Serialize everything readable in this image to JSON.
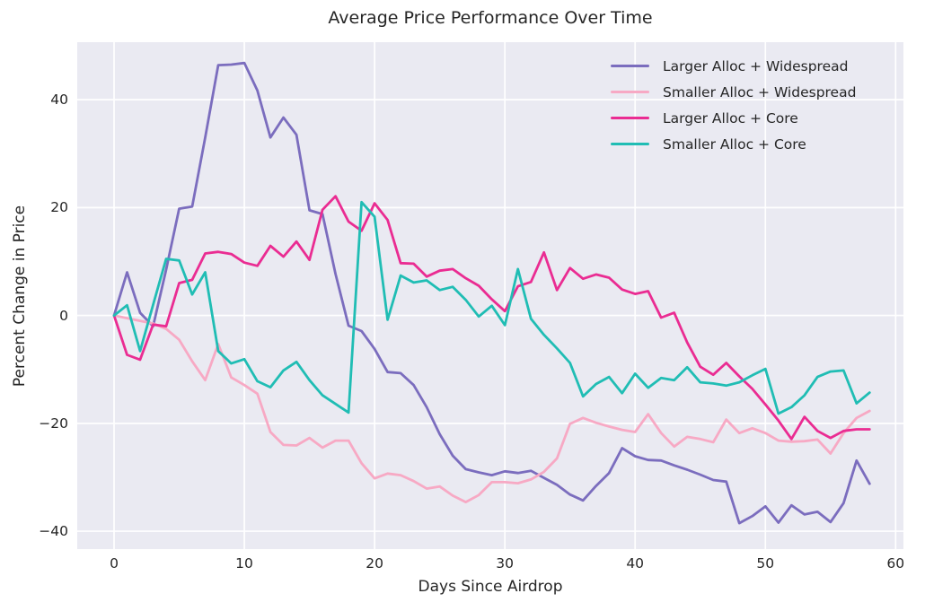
{
  "figure": {
    "title": "Average Price Performance Over Time"
  },
  "axes": {
    "xlabel": "Days Since Airdrop",
    "ylabel": "Percent Change in Price",
    "x_ticks": [
      {
        "value": 0,
        "label": "0"
      },
      {
        "value": 10,
        "label": "10"
      },
      {
        "value": 20,
        "label": "20"
      },
      {
        "value": 30,
        "label": "30"
      },
      {
        "value": 40,
        "label": "40"
      },
      {
        "value": 50,
        "label": "50"
      },
      {
        "value": 60,
        "label": "60"
      }
    ],
    "y_ticks": [
      {
        "value": -40,
        "label": "−40"
      },
      {
        "value": -20,
        "label": "−20"
      },
      {
        "value": 0,
        "label": "0"
      },
      {
        "value": 20,
        "label": "20"
      },
      {
        "value": 40,
        "label": "40"
      }
    ]
  },
  "colors": {
    "plot_background": "#eaeaf2",
    "grid": "#ffffff",
    "text": "#262626",
    "purple": "#7b6dbe",
    "pink": "#f7a9c4",
    "magenta": "#ea2c92",
    "teal": "#20bdb4"
  },
  "chart_data": {
    "type": "line",
    "title": "Average Price Performance Over Time",
    "xlabel": "Days Since Airdrop",
    "ylabel": "Percent Change in Price",
    "xlim": [
      -2.8,
      60.6
    ],
    "ylim": [
      -43.3,
      50.6
    ],
    "grid": true,
    "legend_position": "upper right",
    "x": [
      0,
      1,
      2,
      3,
      4,
      5,
      6,
      7,
      8,
      9,
      10,
      11,
      12,
      13,
      14,
      15,
      16,
      17,
      18,
      19,
      20,
      21,
      22,
      23,
      24,
      25,
      26,
      27,
      28,
      29,
      30,
      31,
      32,
      33,
      34,
      35,
      36,
      37,
      38,
      39,
      40,
      41,
      42,
      43,
      44,
      45,
      46,
      47,
      48,
      49,
      50,
      51,
      52,
      53,
      54,
      55,
      56,
      57,
      58
    ],
    "series": [
      {
        "name": "Larger Alloc + Widespread",
        "color": "#7b6dbe",
        "values": [
          0,
          8,
          0.5,
          -2,
          8.5,
          19.8,
          20.2,
          33,
          46.4,
          46.5,
          46.8,
          41.7,
          33,
          36.7,
          33.5,
          19.5,
          18.8,
          7.7,
          -1.9,
          -2.9,
          -6.2,
          -10.5,
          -10.7,
          -12.9,
          -17,
          -22,
          -26,
          -28.5,
          -29.1,
          -29.6,
          -28.9,
          -29.2,
          -28.8,
          -30.1,
          -31.4,
          -33.2,
          -34.3,
          -31.6,
          -29.2,
          -24.6,
          -26.1,
          -26.8,
          -26.9,
          -27.8,
          -28.6,
          -29.5,
          -30.5,
          -30.8,
          -38.5,
          -37.2,
          -35.4,
          -38.4,
          -35.2,
          -36.9,
          -36.4,
          -38.3,
          -34.8,
          -26.9,
          -31.2
        ]
      },
      {
        "name": "Smaller Alloc + Widespread",
        "color": "#f7a9c4",
        "values": [
          0,
          -0.5,
          -1,
          -1.5,
          -2.5,
          -4.5,
          -8.5,
          -12,
          -5.3,
          -11.5,
          -12.9,
          -14.5,
          -21.6,
          -24,
          -24.1,
          -22.7,
          -24.5,
          -23.2,
          -23.2,
          -27.4,
          -30.2,
          -29.3,
          -29.6,
          -30.7,
          -32.1,
          -31.7,
          -33.4,
          -34.6,
          -33.3,
          -30.9,
          -30.9,
          -31.1,
          -30.4,
          -29,
          -26.5,
          -20.1,
          -19,
          -19.9,
          -20.6,
          -21.2,
          -21.6,
          -18.3,
          -21.8,
          -24.3,
          -22.5,
          -22.9,
          -23.5,
          -19.3,
          -21.8,
          -20.9,
          -21.8,
          -23.2,
          -23.4,
          -23.3,
          -23,
          -25.6,
          -21.8,
          -19,
          -17.7
        ]
      },
      {
        "name": "Larger Alloc + Core",
        "color": "#ea2c92",
        "values": [
          0,
          -7.3,
          -8.2,
          -1.7,
          -2,
          6,
          6.6,
          11.5,
          11.8,
          11.4,
          9.8,
          9.2,
          12.9,
          10.9,
          13.7,
          10.3,
          19.6,
          22.1,
          17.4,
          15.7,
          20.8,
          17.7,
          9.7,
          9.6,
          7.2,
          8.3,
          8.6,
          6.9,
          5.5,
          3,
          0.8,
          5.4,
          6.2,
          11.7,
          4.7,
          8.8,
          6.8,
          7.6,
          7,
          4.8,
          4,
          4.5,
          -0.4,
          0.5,
          -5,
          -9.5,
          -11,
          -8.8,
          -11.3,
          -13.6,
          -16.5,
          -19.5,
          -22.9,
          -18.8,
          -21.4,
          -22.7,
          -21.4,
          -21.1,
          -21.1
        ]
      },
      {
        "name": "Smaller Alloc + Core",
        "color": "#20bdb4",
        "values": [
          0,
          1.9,
          -6.6,
          2,
          10.5,
          10.2,
          3.9,
          8,
          -6.6,
          -8.9,
          -8.1,
          -12.2,
          -13.3,
          -10.2,
          -8.6,
          -12,
          -14.8,
          -16.4,
          -18,
          21,
          18.3,
          -0.8,
          7.4,
          6.1,
          6.5,
          4.7,
          5.3,
          2.9,
          -0.2,
          1.8,
          -1.8,
          8.6,
          -0.6,
          -3.6,
          -6.1,
          -8.8,
          -15,
          -12.7,
          -11.4,
          -14.4,
          -10.8,
          -13.4,
          -11.6,
          -12,
          -9.6,
          -12.4,
          -12.6,
          -13,
          -12.4,
          -11.1,
          -9.9,
          -18.2,
          -17,
          -14.8,
          -11.4,
          -10.4,
          -10.2,
          -16.3,
          -14.3
        ]
      }
    ]
  }
}
